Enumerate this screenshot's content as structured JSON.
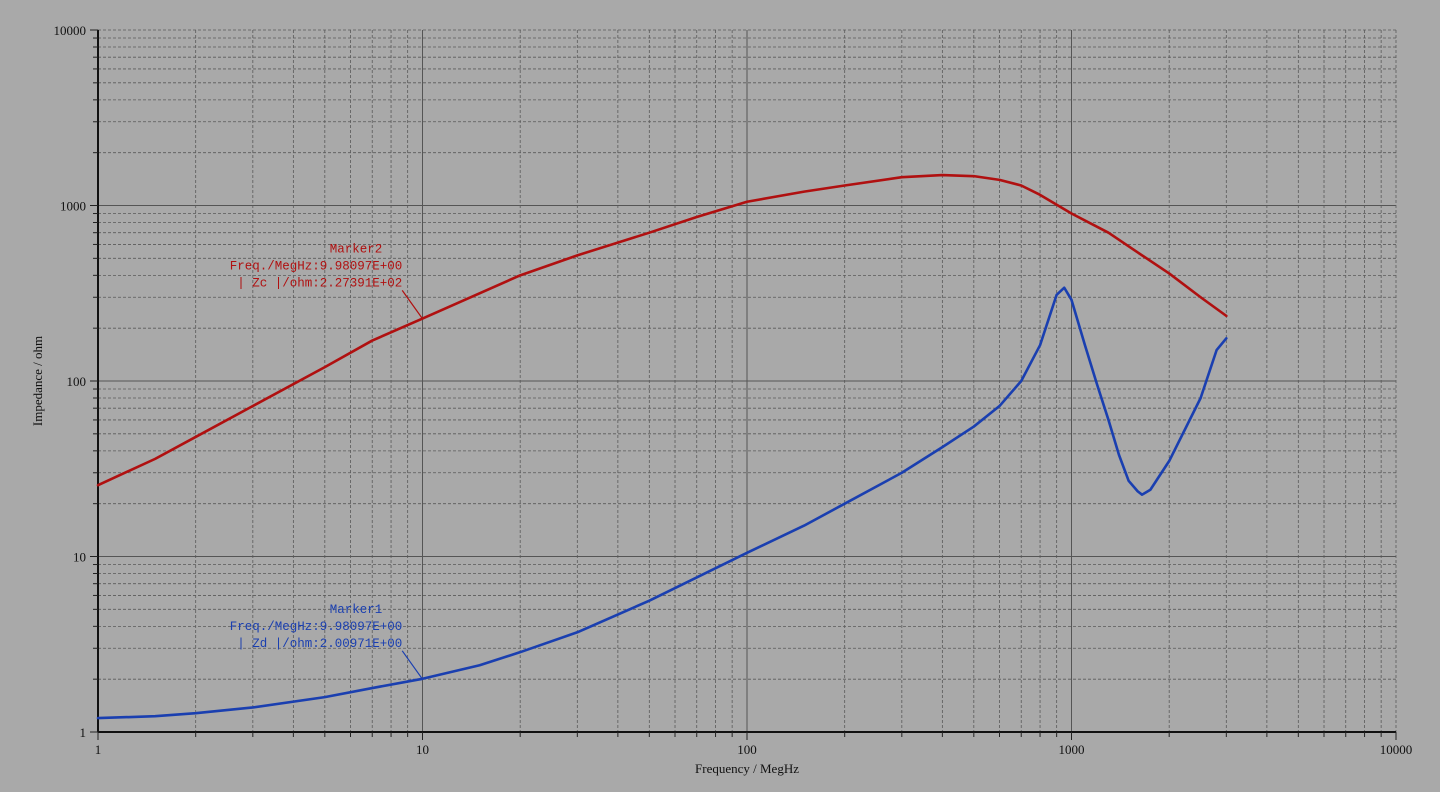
{
  "chart_data": {
    "type": "line",
    "title": "",
    "xlabel": "Frequency / MegHz",
    "ylabel": "Impedance / ohm",
    "x_scale": "log",
    "y_scale": "log",
    "xlim": [
      1,
      10000
    ],
    "ylim": [
      1,
      10000
    ],
    "grid": true,
    "x_ticks": [
      {
        "value": 1,
        "label": "1"
      },
      {
        "value": 10,
        "label": "10"
      },
      {
        "value": 100,
        "label": "100"
      },
      {
        "value": 1000,
        "label": "1000"
      },
      {
        "value": 10000,
        "label": "10000"
      }
    ],
    "y_ticks": [
      {
        "value": 1,
        "label": "1"
      },
      {
        "value": 10,
        "label": "10"
      },
      {
        "value": 100,
        "label": "100"
      },
      {
        "value": 1000,
        "label": "1000"
      },
      {
        "value": 10000,
        "label": "10000"
      }
    ],
    "series": [
      {
        "color": "#b01010",
        "points": [
          [
            1,
            25.5
          ],
          [
            1.5,
            36
          ],
          [
            2,
            48
          ],
          [
            3,
            72
          ],
          [
            5,
            120
          ],
          [
            7,
            170
          ],
          [
            10,
            227
          ],
          [
            20,
            400
          ],
          [
            30,
            520
          ],
          [
            50,
            700
          ],
          [
            70,
            860
          ],
          [
            100,
            1050
          ],
          [
            150,
            1200
          ],
          [
            200,
            1300
          ],
          [
            300,
            1450
          ],
          [
            400,
            1490
          ],
          [
            500,
            1470
          ],
          [
            600,
            1400
          ],
          [
            700,
            1300
          ],
          [
            800,
            1150
          ],
          [
            1000,
            900
          ],
          [
            1300,
            700
          ],
          [
            1600,
            540
          ],
          [
            2000,
            410
          ],
          [
            2500,
            300
          ],
          [
            3000,
            235
          ]
        ]
      },
      {
        "color": "#1a3fb0",
        "points": [
          [
            1,
            1.2
          ],
          [
            1.5,
            1.23
          ],
          [
            2,
            1.28
          ],
          [
            3,
            1.38
          ],
          [
            5,
            1.58
          ],
          [
            7,
            1.78
          ],
          [
            10,
            2.01
          ],
          [
            15,
            2.4
          ],
          [
            20,
            2.85
          ],
          [
            30,
            3.7
          ],
          [
            50,
            5.6
          ],
          [
            70,
            7.6
          ],
          [
            100,
            10.5
          ],
          [
            150,
            15
          ],
          [
            200,
            20
          ],
          [
            300,
            30
          ],
          [
            400,
            42
          ],
          [
            500,
            55
          ],
          [
            600,
            72
          ],
          [
            700,
            100
          ],
          [
            800,
            160
          ],
          [
            900,
            310
          ],
          [
            950,
            340
          ],
          [
            1000,
            290
          ],
          [
            1100,
            160
          ],
          [
            1200,
            95
          ],
          [
            1300,
            60
          ],
          [
            1400,
            38
          ],
          [
            1500,
            27
          ],
          [
            1600,
            23.5
          ],
          [
            1650,
            22.5
          ],
          [
            1750,
            24
          ],
          [
            2000,
            35
          ],
          [
            2500,
            80
          ],
          [
            2800,
            150
          ],
          [
            3000,
            175
          ]
        ]
      }
    ],
    "annotations": [
      {
        "color": "#b01010",
        "lines": [
          "Marker2",
          "Freq./MegHz:9.98097E+00",
          "| Zc |/ohm:2.27391E+02"
        ],
        "at": [
          9.98097,
          227.391
        ]
      },
      {
        "color": "#1a3fb0",
        "lines": [
          "Marker1",
          "Freq./MegHz:9.98097E+00",
          "| Zd |/ohm:2.00971E+00"
        ],
        "at": [
          9.98097,
          2.00971
        ]
      }
    ]
  }
}
